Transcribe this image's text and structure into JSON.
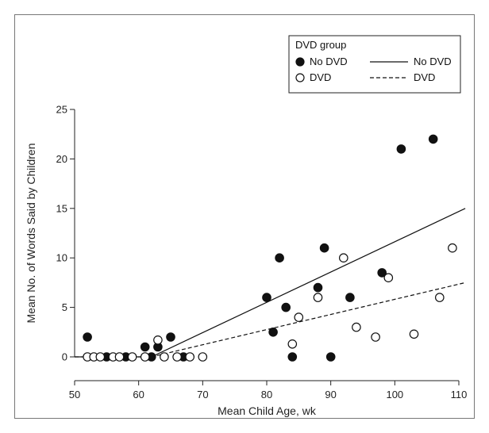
{
  "chart_data": {
    "type": "scatter",
    "xlabel": "Mean Child Age, wk",
    "ylabel": "Mean No. of Words Said by Children",
    "xlim": [
      50,
      110
    ],
    "ylim": [
      0,
      25
    ],
    "xticks": [
      50,
      60,
      70,
      80,
      90,
      100,
      110
    ],
    "yticks": [
      0,
      5,
      10,
      15,
      20,
      25
    ],
    "grid": false,
    "legend": {
      "title": "DVD group",
      "placement": "top-right",
      "entries": [
        {
          "label": "No DVD",
          "marker": "filled-circle"
        },
        {
          "label": "DVD",
          "marker": "open-circle"
        }
      ],
      "line_entries": [
        {
          "label": "No DVD",
          "style": "solid"
        },
        {
          "label": "DVD",
          "style": "dashed"
        }
      ]
    },
    "series": [
      {
        "name": "No DVD",
        "marker": "filled-circle",
        "points": [
          [
            52,
            2
          ],
          [
            55,
            0
          ],
          [
            58,
            0
          ],
          [
            61,
            1
          ],
          [
            62,
            0
          ],
          [
            63,
            1
          ],
          [
            65,
            2
          ],
          [
            67,
            0
          ],
          [
            80,
            6
          ],
          [
            81,
            2.5
          ],
          [
            82,
            10
          ],
          [
            83,
            5
          ],
          [
            84,
            0
          ],
          [
            88,
            7
          ],
          [
            89,
            11
          ],
          [
            90,
            0
          ],
          [
            93,
            6
          ],
          [
            98,
            8.5
          ],
          [
            101,
            21
          ],
          [
            106,
            22
          ]
        ]
      },
      {
        "name": "DVD",
        "marker": "open-circle",
        "points": [
          [
            52,
            0
          ],
          [
            53,
            0
          ],
          [
            54,
            0
          ],
          [
            56,
            0
          ],
          [
            57,
            0
          ],
          [
            59,
            0
          ],
          [
            61,
            0
          ],
          [
            63,
            1.7
          ],
          [
            64,
            0
          ],
          [
            66,
            0
          ],
          [
            68,
            0
          ],
          [
            70,
            0
          ],
          [
            84,
            1.3
          ],
          [
            85,
            4
          ],
          [
            88,
            6
          ],
          [
            92,
            10
          ],
          [
            94,
            3
          ],
          [
            97,
            2
          ],
          [
            99,
            8
          ],
          [
            103,
            2.3
          ],
          [
            107,
            6
          ],
          [
            109,
            11
          ]
        ]
      }
    ],
    "fit_lines": [
      {
        "name": "No DVD",
        "style": "solid",
        "points": [
          [
            50,
            0
          ],
          [
            62,
            0
          ],
          [
            111,
            15
          ]
        ]
      },
      {
        "name": "DVD",
        "style": "dashed",
        "points": [
          [
            50,
            0
          ],
          [
            62,
            0
          ],
          [
            111,
            7.5
          ]
        ]
      }
    ]
  }
}
